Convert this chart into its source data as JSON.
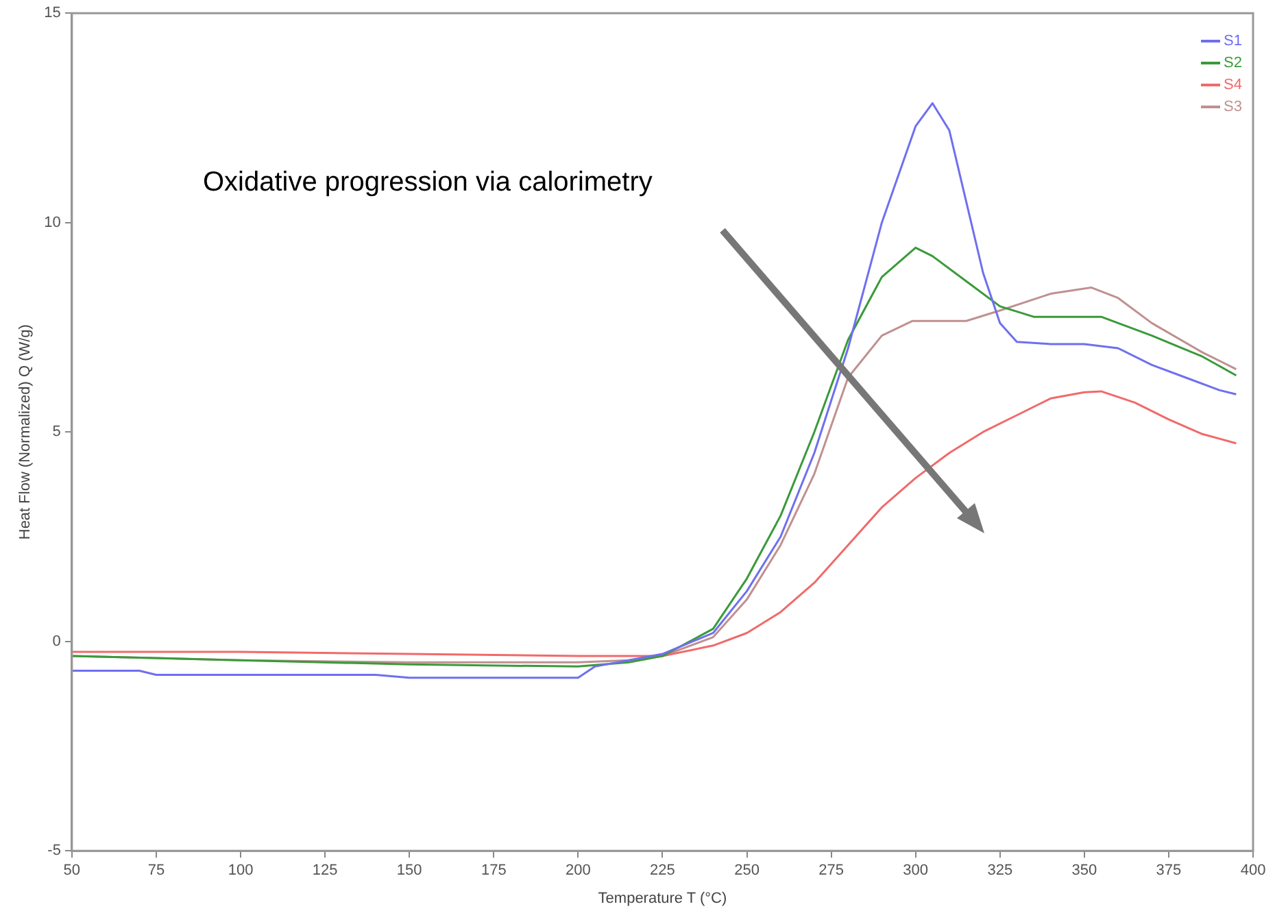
{
  "chart_data": {
    "type": "line",
    "xlabel": "Temperature T (°C)",
    "ylabel": "Heat Flow (Normalized) Q (W/g)",
    "annotations": [
      "Oxidative progression via calorimetry"
    ],
    "xlim": [
      50,
      400
    ],
    "xticks": [
      50,
      75,
      100,
      125,
      150,
      175,
      200,
      225,
      250,
      275,
      300,
      325,
      350,
      375,
      400
    ],
    "ylim": [
      -5,
      15
    ],
    "yticks": [
      -5,
      0,
      5,
      10,
      15
    ],
    "grid": false,
    "legend": "top right",
    "marker": "none",
    "line_style": "solid",
    "series": [
      {
        "name": "S1",
        "color": "#6f6ff0",
        "x": [
          50,
          70,
          75,
          140,
          150,
          200,
          205,
          215,
          225,
          240,
          250,
          260,
          270,
          280,
          290,
          300,
          305,
          310,
          315,
          320,
          325,
          330,
          340,
          350,
          360,
          370,
          380,
          390,
          395
        ],
        "values": [
          -0.7,
          -0.7,
          -0.8,
          -0.8,
          -0.87,
          -0.87,
          -0.6,
          -0.45,
          -0.3,
          0.2,
          1.2,
          2.5,
          4.5,
          7,
          10,
          12.3,
          12.85,
          12.2,
          10.5,
          8.8,
          7.6,
          7.15,
          7.1,
          7.1,
          7.0,
          6.6,
          6.3,
          6.0,
          5.9
        ]
      },
      {
        "name": "S2",
        "color": "#3a9a3a",
        "x": [
          50,
          100,
          150,
          200,
          215,
          225,
          240,
          250,
          260,
          270,
          280,
          290,
          300,
          305,
          315,
          325,
          335,
          355,
          370,
          385,
          395
        ],
        "values": [
          -0.35,
          -0.45,
          -0.55,
          -0.6,
          -0.5,
          -0.35,
          0.3,
          1.5,
          3,
          5,
          7.2,
          8.7,
          9.4,
          9.2,
          8.6,
          8.0,
          7.75,
          7.75,
          7.3,
          6.8,
          6.35
        ]
      },
      {
        "name": "S4",
        "color": "#f06a6a",
        "x": [
          50,
          100,
          150,
          200,
          225,
          240,
          250,
          260,
          270,
          280,
          290,
          300,
          310,
          320,
          330,
          340,
          350,
          355,
          365,
          375,
          385,
          395
        ],
        "values": [
          -0.25,
          -0.25,
          -0.3,
          -0.35,
          -0.35,
          -0.1,
          0.2,
          0.7,
          1.4,
          2.3,
          3.2,
          3.9,
          4.5,
          5.0,
          5.4,
          5.8,
          5.95,
          5.97,
          5.7,
          5.3,
          4.95,
          4.73
        ]
      },
      {
        "name": "S3",
        "color": "#c09090",
        "x": [
          50,
          100,
          150,
          200,
          215,
          225,
          240,
          250,
          260,
          270,
          280,
          290,
          299,
          315,
          325,
          340,
          352,
          360,
          370,
          385,
          395
        ],
        "values": [
          -0.35,
          -0.45,
          -0.5,
          -0.5,
          -0.45,
          -0.35,
          0.1,
          1.0,
          2.3,
          4.0,
          6.3,
          7.3,
          7.65,
          7.65,
          7.9,
          8.3,
          8.45,
          8.2,
          7.6,
          6.9,
          6.5
        ]
      }
    ]
  }
}
